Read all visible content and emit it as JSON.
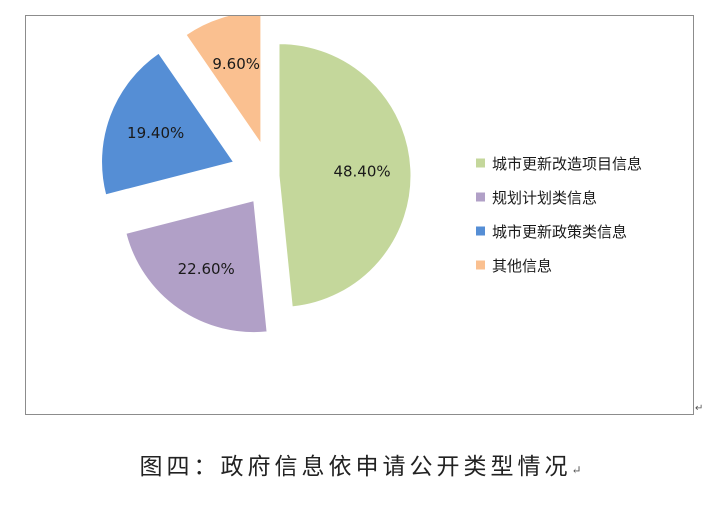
{
  "caption": "图四：政府信息依申请公开类型情况",
  "paragraph_mark": "↵",
  "chart_data": {
    "type": "pie",
    "exploded": true,
    "categories": [
      "城市更新改造项目信息",
      "规划计划类信息",
      "城市更新政策类信息",
      "其他信息"
    ],
    "values": [
      48.4,
      22.6,
      19.4,
      9.6
    ],
    "labels": [
      "48.40%",
      "22.60%",
      "19.40%",
      "9.60%"
    ],
    "colors": [
      "#c4d79b",
      "#b1a0c7",
      "#558ed5",
      "#fac090"
    ],
    "legend_position": "right",
    "title": ""
  }
}
